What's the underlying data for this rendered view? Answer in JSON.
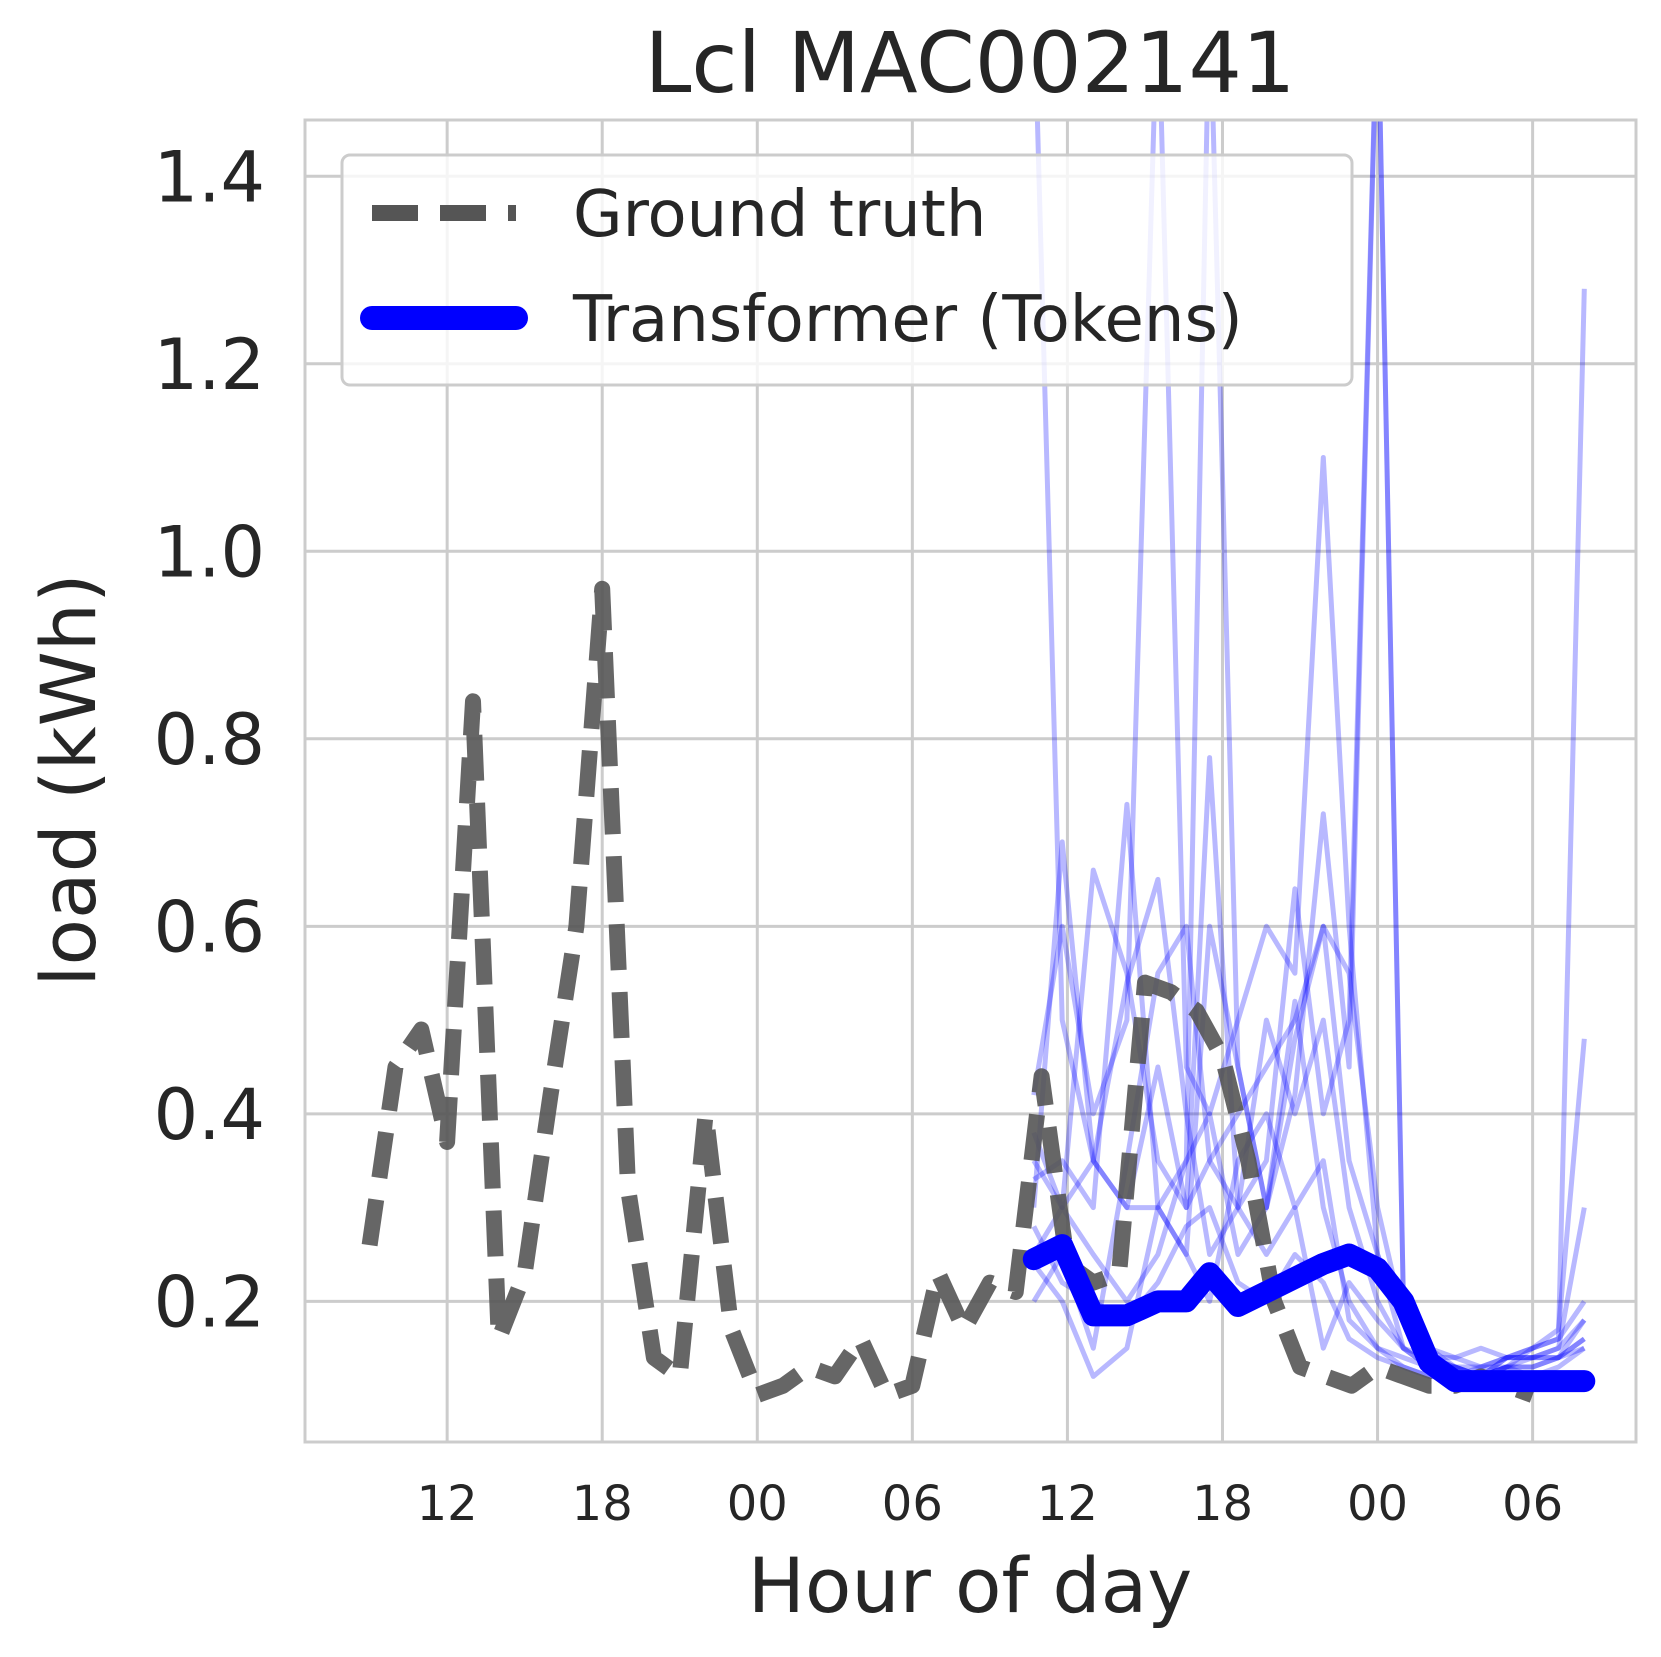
{
  "chart_data": {
    "type": "line",
    "title": "Lcl MAC002141",
    "xlabel": "Hour of day",
    "ylabel": "load (kWh)",
    "xlim": [
      -5.5,
      46
    ],
    "ylim": [
      0.05,
      1.46
    ],
    "xticks": [
      0,
      6,
      12,
      18,
      24,
      30,
      36,
      42
    ],
    "xtick_labels": [
      "12",
      "18",
      "00",
      "06",
      "12",
      "18",
      "00",
      "06"
    ],
    "yticks": [
      0.2,
      0.4,
      0.6,
      0.8,
      1.0,
      1.2,
      1.4
    ],
    "ytick_labels": [
      "0.2",
      "0.4",
      "0.6",
      "0.8",
      "1.0",
      "1.2",
      "1.4"
    ],
    "grid": true,
    "legend_position": "top-left",
    "colors": {
      "ground_truth": "#555555",
      "transformer": "#0000ff",
      "samples": "#0000ff"
    },
    "series": [
      {
        "name": "Ground truth",
        "style": "dashed",
        "x": [
          -3,
          -2,
          -1,
          0,
          1,
          2,
          3,
          4,
          5,
          6,
          7,
          8,
          9,
          10,
          11,
          12,
          13,
          14,
          15,
          16,
          17,
          18,
          19,
          20,
          21,
          22,
          23,
          24,
          25,
          26,
          27,
          28,
          29,
          30,
          31,
          32,
          33,
          34,
          35,
          36,
          37,
          38,
          39,
          40,
          41,
          42
        ],
        "y": [
          0.26,
          0.45,
          0.49,
          0.37,
          0.84,
          0.16,
          0.23,
          0.42,
          0.6,
          0.96,
          0.32,
          0.14,
          0.12,
          0.4,
          0.17,
          0.1,
          0.11,
          0.13,
          0.12,
          0.16,
          0.1,
          0.11,
          0.23,
          0.17,
          0.22,
          0.21,
          0.44,
          0.24,
          0.22,
          0.23,
          0.54,
          0.53,
          0.51,
          0.46,
          0.35,
          0.2,
          0.13,
          0.12,
          0.11,
          0.13,
          0.12,
          0.11,
          0.11,
          0.12,
          0.11,
          0.1
        ]
      },
      {
        "name": "Transformer (Tokens)",
        "style": "solid",
        "x": [
          22.7,
          23.8,
          25.0,
          26.3,
          27.5,
          28.6,
          29.5,
          30.6,
          31.7,
          32.8,
          33.9,
          34.9,
          36.0,
          37.0,
          38.0,
          39.0,
          40.0,
          41.0,
          42.0,
          43.0,
          44.0
        ],
        "y": [
          0.245,
          0.26,
          0.185,
          0.185,
          0.2,
          0.2,
          0.23,
          0.195,
          0.21,
          0.225,
          0.24,
          0.25,
          0.235,
          0.2,
          0.135,
          0.115,
          0.115,
          0.115,
          0.115,
          0.115,
          0.115
        ]
      }
    ],
    "sample_series": [
      {
        "x": [
          22.7,
          23.8,
          25,
          26.3,
          27.5,
          28.6,
          29.5,
          30.6,
          31.7,
          32.8,
          33.9,
          34.9,
          36,
          37,
          38,
          39,
          40,
          41,
          42,
          43,
          44
        ],
        "y": [
          1.6,
          0.5,
          0.35,
          0.3,
          0.45,
          0.3,
          0.35,
          0.4,
          0.45,
          0.5,
          0.6,
          0.55,
          0.3,
          0.18,
          0.15,
          0.14,
          0.15,
          0.14,
          0.14,
          0.15,
          0.18
        ]
      },
      {
        "x": [
          22.7,
          23.8,
          25,
          26.3,
          27.5,
          28.6,
          29.5,
          30.6,
          31.7,
          32.8,
          33.9,
          34.9,
          36,
          37,
          38,
          39,
          40,
          41,
          42,
          43,
          44
        ],
        "y": [
          0.42,
          0.6,
          0.4,
          0.5,
          1.6,
          0.45,
          0.4,
          0.5,
          0.6,
          0.55,
          1.1,
          0.6,
          0.25,
          0.15,
          0.14,
          0.13,
          0.12,
          0.14,
          0.15,
          0.16,
          0.2
        ]
      },
      {
        "x": [
          22.7,
          23.8,
          25,
          26.3,
          27.5,
          28.6,
          29.5,
          30.6,
          31.7,
          32.8,
          33.9,
          34.9,
          36,
          37,
          38,
          39,
          40,
          41,
          42,
          43,
          44
        ],
        "y": [
          0.3,
          0.69,
          0.35,
          0.3,
          0.3,
          0.35,
          1.6,
          0.45,
          0.3,
          0.42,
          0.72,
          0.45,
          1.6,
          0.2,
          0.15,
          0.13,
          0.12,
          0.13,
          0.15,
          0.16,
          1.28
        ]
      },
      {
        "x": [
          22.7,
          23.8,
          25,
          26.3,
          27.5,
          28.6,
          29.5,
          30.6,
          31.7,
          32.8,
          33.9,
          34.9,
          36,
          37,
          38,
          39,
          40,
          41,
          42,
          43,
          44
        ],
        "y": [
          0.35,
          0.3,
          0.66,
          0.55,
          0.35,
          0.3,
          0.78,
          0.3,
          0.35,
          0.64,
          0.4,
          0.5,
          1.6,
          0.2,
          0.14,
          0.13,
          0.12,
          0.14,
          0.15,
          0.17,
          0.48
        ]
      },
      {
        "x": [
          22.7,
          23.8,
          25,
          26.3,
          27.5,
          28.6,
          29.5,
          30.6,
          31.7,
          32.8,
          33.9,
          34.9,
          36,
          37,
          38,
          39,
          40,
          41,
          42,
          43,
          44
        ],
        "y": [
          0.33,
          0.35,
          0.3,
          0.73,
          0.3,
          0.25,
          0.6,
          0.45,
          0.3,
          0.48,
          0.6,
          0.35,
          0.25,
          0.18,
          0.14,
          0.14,
          0.13,
          0.14,
          0.14,
          0.15,
          0.3
        ]
      },
      {
        "x": [
          22.7,
          23.8,
          25,
          26.3,
          27.5,
          28.6,
          29.5,
          30.6,
          31.7,
          32.8,
          33.9,
          34.9,
          36,
          37,
          38,
          39,
          40,
          41,
          42,
          43,
          44
        ],
        "y": [
          0.38,
          0.3,
          0.35,
          0.54,
          0.65,
          0.4,
          0.25,
          0.3,
          0.5,
          0.4,
          0.5,
          0.3,
          0.2,
          0.15,
          0.13,
          0.13,
          0.12,
          0.13,
          0.13,
          0.14,
          0.18
        ]
      },
      {
        "x": [
          22.7,
          23.8,
          25,
          26.3,
          27.5,
          28.6,
          29.5,
          30.6,
          31.7,
          32.8,
          33.9,
          34.9,
          36,
          37,
          38,
          39,
          40,
          41,
          42,
          43,
          44
        ],
        "y": [
          0.2,
          0.25,
          0.15,
          0.35,
          0.55,
          0.6,
          0.35,
          0.3,
          0.25,
          0.3,
          0.15,
          0.22,
          0.18,
          0.15,
          0.13,
          0.13,
          0.13,
          0.14,
          0.14,
          0.14,
          0.16
        ]
      },
      {
        "x": [
          22.7,
          23.8,
          25,
          26.3,
          27.5,
          28.6,
          29.5,
          30.6,
          31.7,
          32.8,
          33.9,
          34.9,
          36,
          37,
          38,
          39,
          40,
          41,
          42,
          43,
          44
        ],
        "y": [
          0.24,
          0.2,
          0.12,
          0.15,
          0.3,
          0.25,
          0.2,
          0.35,
          0.4,
          0.3,
          0.35,
          0.18,
          0.15,
          0.14,
          0.13,
          0.12,
          0.13,
          0.13,
          0.14,
          0.14,
          0.15
        ]
      },
      {
        "x": [
          22.7,
          23.8,
          25,
          26.3,
          27.5,
          28.6,
          29.5,
          30.6,
          31.7,
          32.8,
          33.9,
          34.9,
          36,
          37,
          38,
          39,
          40,
          41,
          42,
          43,
          44
        ],
        "y": [
          0.25,
          0.3,
          0.25,
          0.2,
          0.25,
          0.35,
          0.4,
          0.25,
          0.3,
          0.52,
          0.3,
          0.2,
          0.15,
          0.13,
          0.12,
          0.12,
          0.12,
          0.13,
          0.13,
          0.14,
          0.16
        ]
      },
      {
        "x": [
          22.7,
          23.8,
          25,
          26.3,
          27.5,
          28.6,
          29.5,
          30.6,
          31.7,
          32.8,
          33.9,
          34.9,
          36,
          37,
          38,
          39,
          40,
          41,
          42,
          43,
          44
        ],
        "y": [
          0.28,
          0.22,
          0.2,
          0.18,
          0.22,
          0.28,
          0.3,
          0.22,
          0.2,
          0.25,
          0.22,
          0.16,
          0.14,
          0.13,
          0.12,
          0.12,
          0.12,
          0.13,
          0.12,
          0.13,
          0.15
        ]
      }
    ]
  }
}
